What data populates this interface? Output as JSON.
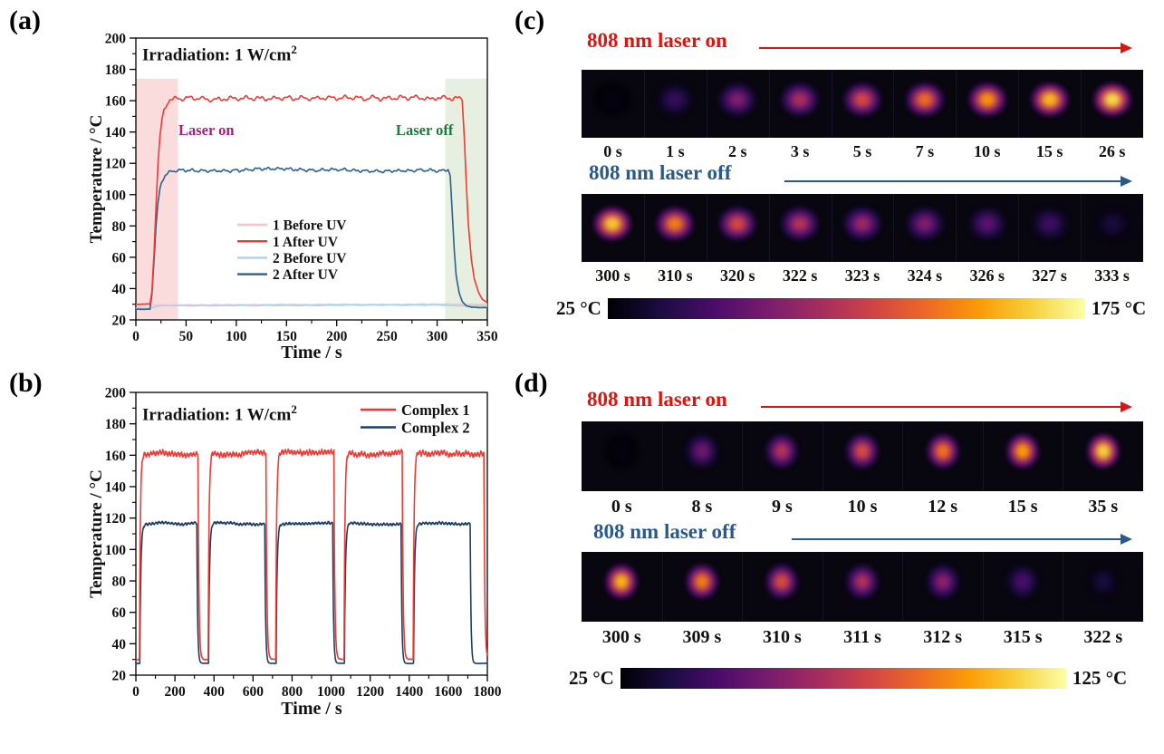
{
  "colors": {
    "axis_text": "#111111",
    "series_red": "#ee3a34",
    "series_pink": "#f7c3c6",
    "series_lightblue": "#a9d4ef",
    "series_blue": "#2b618f",
    "series_navy": "#1d3f63",
    "laser_on_text": "#a81f7d",
    "laser_off_text": "#1c7a3c",
    "band_laser_on": "#fbdcdc",
    "band_laser_off": "#e7efe0",
    "heading_red": "#dd1510",
    "heading_blue": "#2a5a8c",
    "strip_bg": "#08060f",
    "colormap": [
      "#000004",
      "#1b0c41",
      "#4a0c6b",
      "#781c6d",
      "#a52c60",
      "#cf4446",
      "#ed6925",
      "#fb9b06",
      "#f7d03c",
      "#fcffa4"
    ]
  },
  "chart_data": [
    {
      "id": "a",
      "panel_label": "(a)",
      "type": "line",
      "annotation": {
        "text": "Irradiation: 1 W/cm",
        "sup": "2"
      },
      "xlabel": "Time / s",
      "ylabel": "Temperature / °C",
      "xlim": [
        0,
        350
      ],
      "ylim": [
        20,
        200
      ],
      "x_ticks": [
        0,
        50,
        100,
        150,
        200,
        250,
        300,
        350
      ],
      "y_ticks": [
        20,
        40,
        60,
        80,
        100,
        120,
        140,
        160,
        180,
        200
      ],
      "x_minor_step": 25,
      "y_minor_step": 10,
      "bands": [
        {
          "x0": 0,
          "x1": 42,
          "y_top": 174,
          "color_key": "band_laser_on"
        },
        {
          "x0": 308,
          "x1": 350,
          "y_top": 174,
          "color_key": "band_laser_off"
        }
      ],
      "laser_on_note": "Laser on",
      "laser_off_note": "Laser off",
      "legend": [
        {
          "label": "1 Before UV",
          "color_key": "series_pink"
        },
        {
          "label": "1 After UV",
          "color_key": "series_red"
        },
        {
          "label": "2 Before UV",
          "color_key": "series_lightblue"
        },
        {
          "label": "2 After UV",
          "color_key": "series_blue"
        }
      ],
      "series": [
        {
          "name": "1 Before UV",
          "color_key": "series_pink",
          "noise": 0.25,
          "points": [
            [
              0,
              29.6
            ],
            [
              350,
              30.1
            ]
          ]
        },
        {
          "name": "2 Before UV",
          "color_key": "series_lightblue",
          "noise": 0.25,
          "points": [
            [
              0,
              27.6
            ],
            [
              14,
              27.6
            ],
            [
              20,
              28.6
            ],
            [
              30,
              29.2
            ],
            [
              310,
              29.4
            ],
            [
              320,
              29.0
            ],
            [
              350,
              28.8
            ]
          ]
        },
        {
          "name": "2 After UV",
          "color_key": "series_blue",
          "noise": 1.4,
          "points": [
            [
              0,
              26.8
            ],
            [
              14,
              26.8
            ],
            [
              16,
              36
            ],
            [
              18,
              58
            ],
            [
              20,
              80
            ],
            [
              22,
              95
            ],
            [
              24,
              104
            ],
            [
              26,
              109
            ],
            [
              29,
              113
            ],
            [
              33,
              115
            ],
            [
              40,
              116
            ],
            [
              311,
              115.5
            ],
            [
              313,
              112
            ],
            [
              315,
              88
            ],
            [
              317,
              65
            ],
            [
              319,
              48
            ],
            [
              322,
              37
            ],
            [
              325,
              31.5
            ],
            [
              329,
              29
            ],
            [
              335,
              28
            ],
            [
              350,
              27.8
            ]
          ]
        },
        {
          "name": "1 After UV",
          "color_key": "series_red",
          "noise": 2.2,
          "points": [
            [
              0,
              30
            ],
            [
              14,
              30
            ],
            [
              16,
              38
            ],
            [
              18,
              62
            ],
            [
              20,
              92
            ],
            [
              22,
              118
            ],
            [
              24,
              136
            ],
            [
              26,
              147
            ],
            [
              28,
              153
            ],
            [
              31,
              158
            ],
            [
              34,
              160
            ],
            [
              40,
              160.5
            ],
            [
              322,
              161
            ],
            [
              325,
              160
            ],
            [
              327,
              138
            ],
            [
              329,
              108
            ],
            [
              331,
              82
            ],
            [
              334,
              58
            ],
            [
              337,
              46
            ],
            [
              341,
              38
            ],
            [
              345,
              33
            ],
            [
              350,
              31
            ]
          ]
        }
      ]
    },
    {
      "id": "b",
      "panel_label": "(b)",
      "type": "line",
      "annotation": {
        "text": "Irradiation: 1 W/cm",
        "sup": "2"
      },
      "xlabel": "Time / s",
      "ylabel": "Temperature / °C",
      "xlim": [
        0,
        1800
      ],
      "ylim": [
        20,
        200
      ],
      "x_ticks": [
        0,
        200,
        400,
        600,
        800,
        1000,
        1200,
        1400,
        1600,
        1800
      ],
      "y_ticks": [
        20,
        40,
        60,
        80,
        100,
        120,
        140,
        160,
        180,
        200
      ],
      "x_minor_step": 100,
      "y_minor_step": 10,
      "bands": [],
      "legend": [
        {
          "label": "Complex 1",
          "color_key": "series_red"
        },
        {
          "label": "Complex 2",
          "color_key": "series_navy"
        }
      ],
      "series": [
        {
          "name": "Complex 2",
          "color_key": "series_navy",
          "noise": 1.2,
          "base": 27.5,
          "plateau": 116.5,
          "rise_tau": 5,
          "fall_tau": 4,
          "cycles": [
            [
              22,
              314
            ],
            [
              374,
              662
            ],
            [
              720,
              1010
            ],
            [
              1070,
              1360
            ],
            [
              1424,
              1714
            ]
          ]
        },
        {
          "name": "Complex 1",
          "color_key": "series_red",
          "noise": 2.4,
          "base": 30,
          "plateau": 161,
          "rise_tau": 4.5,
          "fall_tau": 4.5,
          "cycles": [
            [
              20,
              320
            ],
            [
              372,
              668
            ],
            [
              718,
              1015
            ],
            [
              1068,
              1365
            ],
            [
              1422,
              1784
            ]
          ]
        }
      ]
    },
    {
      "id": "c",
      "panel_label": "(c)",
      "type": "heatmap",
      "laser_on_heading": "808 nm laser on",
      "laser_off_heading": "808 nm laser off",
      "on_frames": [
        {
          "time": "0 s",
          "intensity": 0.02
        },
        {
          "time": "1 s",
          "intensity": 0.17
        },
        {
          "time": "2 s",
          "intensity": 0.34
        },
        {
          "time": "3 s",
          "intensity": 0.45
        },
        {
          "time": "5 s",
          "intensity": 0.56
        },
        {
          "time": "7 s",
          "intensity": 0.66
        },
        {
          "time": "10 s",
          "intensity": 0.75
        },
        {
          "time": "15 s",
          "intensity": 0.83
        },
        {
          "time": "26 s",
          "intensity": 0.9
        }
      ],
      "off_frames": [
        {
          "time": "300 s",
          "intensity": 0.86
        },
        {
          "time": "310 s",
          "intensity": 0.7
        },
        {
          "time": "320 s",
          "intensity": 0.56
        },
        {
          "time": "322 s",
          "intensity": 0.47
        },
        {
          "time": "323 s",
          "intensity": 0.41
        },
        {
          "time": "324 s",
          "intensity": 0.34
        },
        {
          "time": "326 s",
          "intensity": 0.26
        },
        {
          "time": "327 s",
          "intensity": 0.19
        },
        {
          "time": "333 s",
          "intensity": 0.1
        }
      ],
      "colorbar": {
        "min": "25 °C",
        "max": "175 °C",
        "min_value": 25,
        "max_value": 175
      }
    },
    {
      "id": "d",
      "panel_label": "(d)",
      "type": "heatmap",
      "laser_on_heading": "808 nm laser on",
      "laser_off_heading": "808 nm laser off",
      "on_frames": [
        {
          "time": "0 s",
          "intensity": 0.02
        },
        {
          "time": "8 s",
          "intensity": 0.3
        },
        {
          "time": "9 s",
          "intensity": 0.47
        },
        {
          "time": "10 s",
          "intensity": 0.57
        },
        {
          "time": "12 s",
          "intensity": 0.68
        },
        {
          "time": "15 s",
          "intensity": 0.77
        },
        {
          "time": "35 s",
          "intensity": 0.88
        }
      ],
      "off_frames": [
        {
          "time": "300 s",
          "intensity": 0.82
        },
        {
          "time": "309 s",
          "intensity": 0.7
        },
        {
          "time": "310 s",
          "intensity": 0.57
        },
        {
          "time": "311 s",
          "intensity": 0.46
        },
        {
          "time": "312 s",
          "intensity": 0.37
        },
        {
          "time": "315 s",
          "intensity": 0.22
        },
        {
          "time": "322 s",
          "intensity": 0.1
        }
      ],
      "colorbar": {
        "min": "25 °C",
        "max": "125 °C",
        "min_value": 25,
        "max_value": 125
      }
    }
  ]
}
